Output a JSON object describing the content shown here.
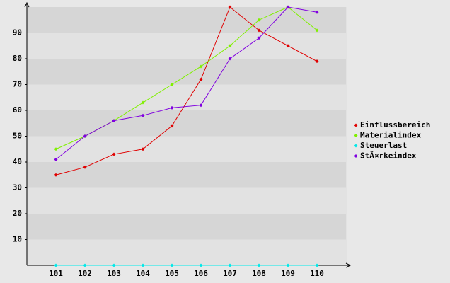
{
  "chart_data": {
    "type": "line",
    "categories": [
      "101",
      "102",
      "103",
      "104",
      "105",
      "106",
      "107",
      "108",
      "109",
      "110"
    ],
    "series": [
      {
        "name": "Einflussbereich",
        "color": "#e00000",
        "values": [
          35,
          38,
          43,
          45,
          54,
          72,
          100,
          91,
          85,
          79
        ]
      },
      {
        "name": "Materialindex",
        "color": "#80f000",
        "values": [
          45,
          50,
          56,
          63,
          70,
          77,
          85,
          95,
          100,
          91
        ]
      },
      {
        "name": "Steuerlast",
        "color": "#00e8e8",
        "values": [
          0,
          0,
          0,
          0,
          0,
          0,
          0,
          0,
          0,
          0
        ]
      },
      {
        "name": "StÃ¤rkeindex",
        "color": "#8000e0",
        "values": [
          41,
          50,
          56,
          58,
          61,
          62,
          80,
          88,
          100,
          98
        ]
      }
    ],
    "ylim": [
      0,
      100
    ],
    "yticks": [
      10,
      20,
      30,
      40,
      50,
      60,
      70,
      80,
      90
    ],
    "grid": true,
    "legend": "right"
  }
}
